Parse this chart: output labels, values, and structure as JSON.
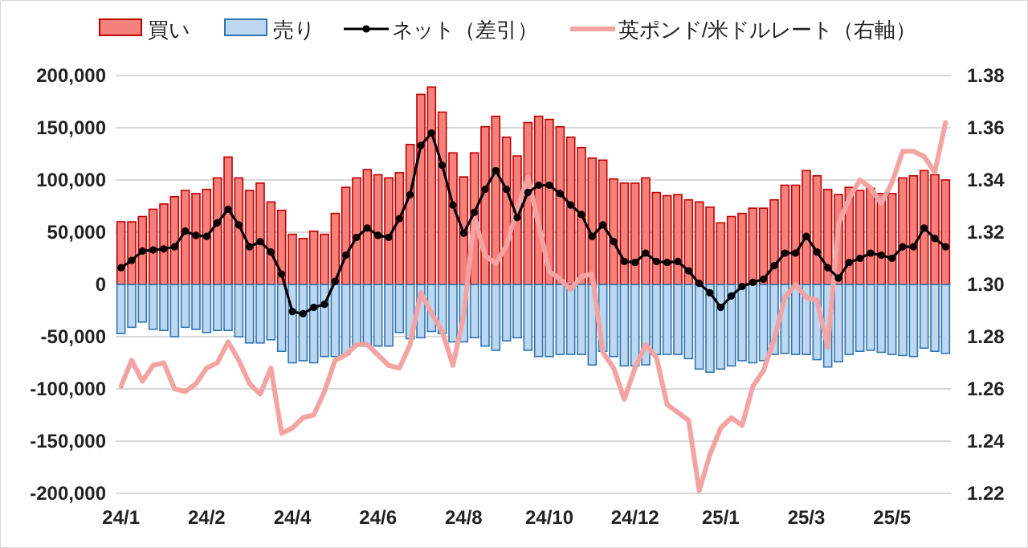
{
  "chart_data": {
    "type": "bar",
    "stacked": true,
    "categories": [
      "24/1",
      null,
      null,
      null,
      null,
      null,
      null,
      null,
      "24/2",
      null,
      null,
      null,
      null,
      null,
      null,
      null,
      "24/4",
      null,
      null,
      null,
      null,
      null,
      null,
      null,
      "24/6",
      null,
      null,
      null,
      null,
      null,
      null,
      null,
      "24/8",
      null,
      null,
      null,
      null,
      null,
      null,
      null,
      "24/10",
      null,
      null,
      null,
      null,
      null,
      null,
      null,
      "24/12",
      null,
      null,
      null,
      null,
      null,
      null,
      null,
      "25/1",
      null,
      null,
      null,
      null,
      null,
      null,
      null,
      "25/3",
      null,
      null,
      null,
      null,
      null,
      null,
      null,
      "25/5",
      null,
      null,
      null,
      null,
      null
    ],
    "series": [
      {
        "name": "買い",
        "color": "#f4817c",
        "values": [
          60000,
          60000,
          65000,
          72000,
          77000,
          84000,
          90000,
          87000,
          91000,
          102000,
          122000,
          102000,
          90000,
          97000,
          79000,
          71000,
          48000,
          44000,
          51000,
          48000,
          68000,
          93000,
          102000,
          110000,
          105000,
          102000,
          107000,
          134000,
          182000,
          189000,
          165000,
          126000,
          103000,
          126000,
          151000,
          161000,
          141000,
          123000,
          155000,
          161000,
          158000,
          151000,
          141000,
          131000,
          121000,
          119000,
          101000,
          97000,
          97000,
          102000,
          88000,
          85000,
          86000,
          81000,
          79000,
          74000,
          59000,
          65000,
          68000,
          73000,
          73000,
          81000,
          95000,
          95000,
          109000,
          104000,
          91000,
          86000,
          93000,
          90000,
          92000,
          87000,
          87000,
          102000,
          104000,
          109000,
          105000,
          100000
        ]
      },
      {
        "name": "売り",
        "color": "#bdd7ee",
        "values": [
          -47000,
          -41000,
          -36000,
          -43000,
          -44000,
          -50000,
          -41000,
          -43000,
          -46000,
          -44000,
          -44000,
          -50000,
          -56000,
          -56000,
          -53000,
          -64000,
          -75000,
          -73000,
          -75000,
          -69000,
          -69000,
          -67000,
          -59000,
          -59000,
          -59000,
          -59000,
          -46000,
          -52000,
          -51000,
          -45000,
          -47000,
          -55000,
          -55000,
          -51000,
          -59000,
          -63000,
          -54000,
          -51000,
          -63000,
          -69000,
          -69000,
          -67000,
          -67000,
          -67000,
          -77000,
          -64000,
          -69000,
          -78000,
          -78000,
          -77000,
          -67000,
          -67000,
          -67000,
          -71000,
          -81000,
          -84000,
          -81000,
          -78000,
          -73000,
          -75000,
          -73000,
          -67000,
          -66000,
          -67000,
          -67000,
          -72000,
          -79000,
          -74000,
          -67000,
          -64000,
          -63000,
          -65000,
          -67000,
          -68000,
          -69000,
          -61000,
          -64000,
          -66000
        ]
      },
      {
        "name": "ネット（差引）",
        "type": "line",
        "marker": "circle",
        "color": "#000000",
        "values": [
          16000,
          23000,
          32000,
          33000,
          34000,
          36000,
          51000,
          47000,
          46000,
          59000,
          72000,
          57000,
          36000,
          41000,
          31000,
          10000,
          -26000,
          -28000,
          -22000,
          -19000,
          3000,
          28000,
          45000,
          54000,
          47000,
          45000,
          63000,
          86000,
          133000,
          145000,
          114000,
          76000,
          49000,
          69000,
          91000,
          109000,
          91000,
          64000,
          88000,
          95000,
          95000,
          87000,
          76000,
          67000,
          46000,
          57000,
          41000,
          22000,
          21000,
          30000,
          22000,
          21000,
          22000,
          13000,
          1000,
          -8000,
          -22000,
          -11000,
          -2000,
          2000,
          5000,
          18000,
          30000,
          30000,
          46000,
          31000,
          16000,
          6000,
          21000,
          25000,
          30000,
          28000,
          25000,
          36000,
          36000,
          54000,
          44000,
          36000
        ]
      },
      {
        "name": "英ポンド/米ドルレート（右軸）",
        "type": "line",
        "axis": "y2",
        "marker": "none",
        "color": "#f4a3a3",
        "values": [
          1.261,
          1.271,
          1.263,
          1.269,
          1.27,
          1.26,
          1.259,
          1.262,
          1.268,
          1.27,
          1.278,
          1.271,
          1.262,
          1.258,
          1.268,
          1.243,
          1.245,
          1.249,
          1.25,
          1.259,
          1.271,
          1.273,
          1.277,
          1.277,
          1.273,
          1.269,
          1.268,
          1.277,
          1.297,
          1.289,
          1.282,
          1.269,
          1.288,
          1.326,
          1.311,
          1.308,
          1.315,
          1.329,
          1.341,
          1.323,
          1.305,
          1.302,
          1.298,
          1.303,
          1.304,
          1.274,
          1.268,
          1.256,
          1.268,
          1.277,
          1.272,
          1.254,
          1.251,
          1.248,
          1.221,
          1.235,
          1.245,
          1.249,
          1.246,
          1.261,
          1.267,
          1.279,
          1.295,
          1.3,
          1.295,
          1.294,
          1.276,
          1.323,
          1.333,
          1.34,
          1.337,
          1.331,
          1.339,
          1.351,
          1.351,
          1.349,
          1.343,
          1.362
        ]
      }
    ],
    "ylim": [
      -200000,
      200000
    ],
    "yticks": [
      {
        "value": -200000,
        "label": "-200,000"
      },
      {
        "value": -150000,
        "label": "-150,000"
      },
      {
        "value": -100000,
        "label": "-100,000"
      },
      {
        "value": -50000,
        "label": "-50,000"
      },
      {
        "value": 0,
        "label": "0"
      },
      {
        "value": 50000,
        "label": "50,000"
      },
      {
        "value": 100000,
        "label": "100,000"
      },
      {
        "value": 150000,
        "label": "150,000"
      },
      {
        "value": 200000,
        "label": "200,000"
      }
    ],
    "y2lim": [
      1.22,
      1.38
    ],
    "y2ticks": [
      {
        "value": 1.22,
        "label": "1.22"
      },
      {
        "value": 1.24,
        "label": "1.24"
      },
      {
        "value": 1.26,
        "label": "1.26"
      },
      {
        "value": 1.28,
        "label": "1.28"
      },
      {
        "value": 1.3,
        "label": "1.30"
      },
      {
        "value": 1.32,
        "label": "1.32"
      },
      {
        "value": 1.34,
        "label": "1.34"
      },
      {
        "value": 1.36,
        "label": "1.36"
      },
      {
        "value": 1.38,
        "label": "1.38"
      }
    ],
    "grid": "y",
    "legend": "top"
  }
}
